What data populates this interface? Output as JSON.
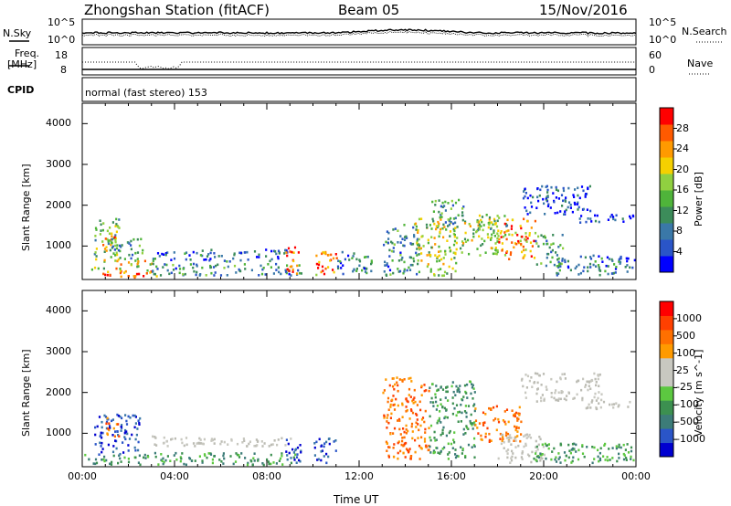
{
  "header": {
    "station": "Zhongshan Station (fitACF)",
    "beam": "Beam 05",
    "date": "15/Nov/2016"
  },
  "panels": {
    "nsky_label": "N.Sky",
    "nsky_ticks": [
      "10^5",
      "10^0"
    ],
    "nsearch_label": "N.Search",
    "nsearch_ticks": [
      "10^5",
      "10^0"
    ],
    "freq_label_1": "Freq.",
    "freq_label_2": "[MHz]",
    "freq_ticks": [
      "18",
      "8"
    ],
    "nave_label": "Nave",
    "nave_ticks": [
      "60",
      "0"
    ],
    "cpid_label": "CPID",
    "cpid_text": "normal (fast stereo) 153"
  },
  "chart_data": [
    {
      "type": "heatmap",
      "title": "",
      "xlabel": "Time UT",
      "ylabel": "Slant Range [km]",
      "colorbar_label": "Power [dB]",
      "xlim": [
        0,
        24
      ],
      "ylim": [
        180,
        4500
      ],
      "yticks": [
        1000,
        2000,
        3000,
        4000
      ],
      "colorbar_ticks": [
        "4",
        "8",
        "12",
        "16",
        "20",
        "24",
        "28"
      ],
      "colorbar_colors": [
        "#0000ff",
        "#2a55c8",
        "#3a78a8",
        "#3c8c5a",
        "#4fb43a",
        "#90d040",
        "#f5d000",
        "#ff9a00",
        "#ff5a00",
        "#ff0000"
      ],
      "regions": [
        {
          "t0": 0.0,
          "t1": 3.2,
          "r0": 250,
          "r1": 420,
          "level": 0.85
        },
        {
          "t0": 0.3,
          "t1": 3.0,
          "r0": 420,
          "r1": 700,
          "level": 0.6
        },
        {
          "t0": 0.5,
          "t1": 1.6,
          "r0": 700,
          "r1": 1700,
          "level": 0.45
        },
        {
          "t0": 0.8,
          "t1": 1.5,
          "r0": 900,
          "r1": 1400,
          "level": 0.7
        },
        {
          "t0": 1.2,
          "t1": 2.6,
          "r0": 700,
          "r1": 1200,
          "level": 0.35
        },
        {
          "t0": 3.0,
          "t1": 9.0,
          "r0": 650,
          "r1": 950,
          "level": 0.2
        },
        {
          "t0": 3.0,
          "t1": 9.5,
          "r0": 300,
          "r1": 600,
          "level": 0.3
        },
        {
          "t0": 8.8,
          "t1": 9.4,
          "r0": 300,
          "r1": 1000,
          "level": 0.85
        },
        {
          "t0": 10.0,
          "t1": 11.0,
          "r0": 300,
          "r1": 900,
          "level": 0.8
        },
        {
          "t0": 11.0,
          "t1": 12.6,
          "r0": 300,
          "r1": 900,
          "level": 0.25
        },
        {
          "t0": 13.0,
          "t1": 14.5,
          "r0": 300,
          "r1": 1600,
          "level": 0.3
        },
        {
          "t0": 14.4,
          "t1": 16.2,
          "r0": 300,
          "r1": 1700,
          "level": 0.55
        },
        {
          "t0": 15.0,
          "t1": 16.5,
          "r0": 1500,
          "r1": 2200,
          "level": 0.35
        },
        {
          "t0": 16.0,
          "t1": 18.0,
          "r0": 800,
          "r1": 1700,
          "level": 0.55
        },
        {
          "t0": 17.0,
          "t1": 18.4,
          "r0": 1200,
          "r1": 1800,
          "level": 0.45
        },
        {
          "t0": 18.0,
          "t1": 19.6,
          "r0": 700,
          "r1": 1700,
          "level": 0.75
        },
        {
          "t0": 19.6,
          "t1": 21.0,
          "r0": 500,
          "r1": 1300,
          "level": 0.35
        },
        {
          "t0": 19.0,
          "t1": 22.0,
          "r0": 1800,
          "r1": 2500,
          "level": 0.15
        },
        {
          "t0": 21.5,
          "t1": 24.0,
          "r0": 1600,
          "r1": 1800,
          "level": 0.15
        },
        {
          "t0": 20.5,
          "t1": 24.0,
          "r0": 300,
          "r1": 800,
          "level": 0.25
        }
      ]
    },
    {
      "type": "heatmap",
      "title": "",
      "xlabel": "Time UT",
      "ylabel": "Slant Range [km]",
      "colorbar_label": "Velocity [m s^-1]",
      "xlim": [
        0,
        24
      ],
      "ylim": [
        180,
        4500
      ],
      "yticks": [
        1000,
        2000,
        3000,
        4000
      ],
      "xticks": [
        "00:00",
        "04:00",
        "08:00",
        "12:00",
        "16:00",
        "20:00",
        "00:00"
      ],
      "colorbar_ticks": [
        "1000",
        "500",
        "100",
        "25",
        "-25",
        "-100",
        "-500",
        "-1000"
      ],
      "colorbar_colors": [
        "#0000d0",
        "#2a55c8",
        "#3c7c78",
        "#3c9050",
        "#5cc840",
        "#c8c8c0",
        "#c8c8c0",
        "#ff9a00",
        "#ff7000",
        "#ff4000",
        "#ff0000"
      ],
      "regions": [
        {
          "t0": 0.0,
          "t1": 3.0,
          "r0": 250,
          "r1": 500,
          "v": "green"
        },
        {
          "t0": 0.5,
          "t1": 2.5,
          "r0": 500,
          "r1": 1500,
          "v": "blue"
        },
        {
          "t0": 1.0,
          "t1": 1.6,
          "r0": 900,
          "r1": 1400,
          "v": "orange"
        },
        {
          "t0": 3.0,
          "t1": 9.0,
          "r0": 700,
          "r1": 950,
          "v": "grey"
        },
        {
          "t0": 3.0,
          "t1": 9.5,
          "r0": 250,
          "r1": 550,
          "v": "green"
        },
        {
          "t0": 8.8,
          "t1": 9.5,
          "r0": 300,
          "r1": 900,
          "v": "blue"
        },
        {
          "t0": 10.0,
          "t1": 11.0,
          "r0": 300,
          "r1": 900,
          "v": "blue"
        },
        {
          "t0": 13.0,
          "t1": 15.0,
          "r0": 400,
          "r1": 2400,
          "v": "orange"
        },
        {
          "t0": 15.0,
          "t1": 17.0,
          "r0": 400,
          "r1": 2300,
          "v": "green"
        },
        {
          "t0": 17.0,
          "t1": 19.0,
          "r0": 800,
          "r1": 1700,
          "v": "orange"
        },
        {
          "t0": 18.0,
          "t1": 20.0,
          "r0": 300,
          "r1": 1000,
          "v": "grey"
        },
        {
          "t0": 19.0,
          "t1": 22.5,
          "r0": 1800,
          "r1": 2500,
          "v": "grey"
        },
        {
          "t0": 21.5,
          "t1": 24.0,
          "r0": 1600,
          "r1": 1800,
          "v": "grey"
        },
        {
          "t0": 19.5,
          "t1": 24.0,
          "r0": 300,
          "r1": 800,
          "v": "green"
        }
      ]
    }
  ]
}
